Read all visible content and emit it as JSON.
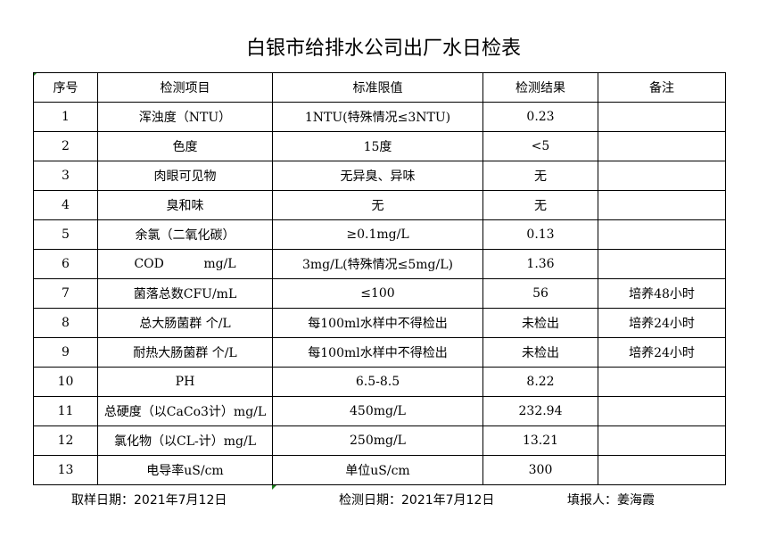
{
  "title": "白银市给排水公司出厂水日检表",
  "table": {
    "headers": [
      "序号",
      "检测项目",
      "标准限值",
      "检测结果",
      "备注"
    ],
    "rows": [
      [
        "1",
        "浑浊度（NTU）",
        "1NTU(特殊情况≤3NTU)",
        "0.23",
        ""
      ],
      [
        "2",
        "色度",
        "15度",
        "<5",
        ""
      ],
      [
        "3",
        "肉眼可见物",
        "无异臭、异味",
        "无",
        ""
      ],
      [
        "4",
        "臭和味",
        "无",
        "无",
        ""
      ],
      [
        "5",
        "余氯（二氧化碳）",
        "≥0.1mg/L",
        "0.13",
        ""
      ],
      [
        "6",
        "COD          mg/L",
        "3mg/L(特殊情况≤5mg/L)",
        "1.36",
        ""
      ],
      [
        "7",
        "菌落总数CFU/mL",
        "≤100",
        "56",
        "培养48小时"
      ],
      [
        "8",
        "总大肠菌群 个/L",
        "每100ml水样中不得检出",
        "未检出",
        "培养24小时"
      ],
      [
        "9",
        "耐热大肠菌群 个/L",
        "每100ml水样中不得检出",
        "未检出",
        "培养24小时"
      ],
      [
        "10",
        "PH",
        "6.5-8.5",
        "8.22",
        ""
      ],
      [
        "11",
        "总硬度（以CaCo3计）mg/L",
        "450mg/L",
        "232.94",
        ""
      ],
      [
        "12",
        "氯化物（以CL-计）mg/L",
        "250mg/L",
        "13.21",
        ""
      ],
      [
        "13",
        "电导率uS/cm",
        "单位uS/cm",
        "300",
        ""
      ]
    ]
  },
  "footer": {
    "sample_date": "取样日期：2021年7月12日",
    "test_date": "检测日期：2021年7月12日",
    "reporter": "填报人：姜海霞"
  }
}
